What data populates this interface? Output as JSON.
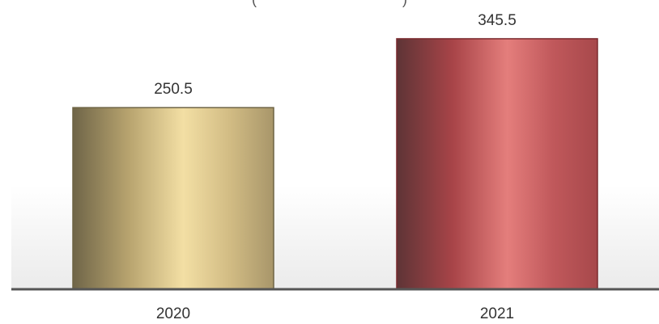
{
  "header": {
    "clipped_title_visible": "(                                    )"
  },
  "chart_data": {
    "type": "bar",
    "categories": [
      "2020",
      "2021"
    ],
    "values": [
      250.5,
      345.5
    ],
    "data_labels": [
      "250.5",
      "345.5"
    ],
    "bar_colors": [
      "#C8B37A",
      "#B04A4E"
    ],
    "ylim": [
      0,
      390
    ],
    "grid": false,
    "legend": "none",
    "baseline_color": "#555555",
    "background_gradient": [
      "#ffffff",
      "#ebebeb"
    ]
  }
}
